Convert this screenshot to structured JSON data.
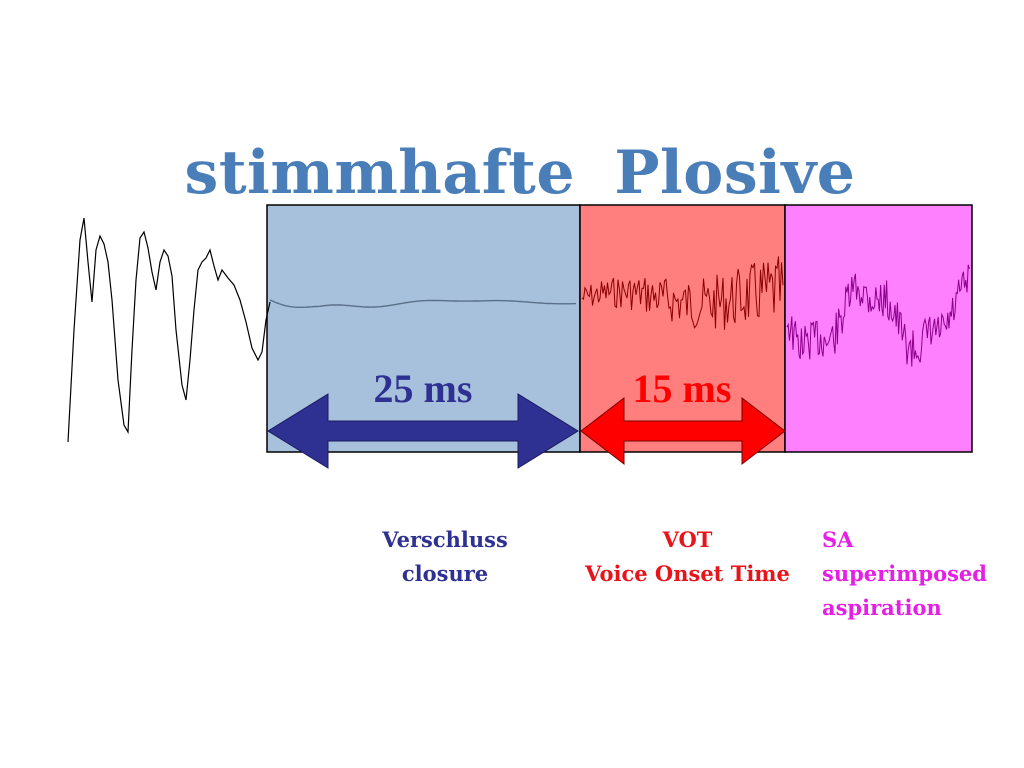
{
  "title": "stimmhafte  Plosive",
  "colors": {
    "title": "#4a7eb9",
    "closure_fill": "#a7c1dc",
    "vot_fill": "#ff7f7f",
    "sa_fill": "#ff80ff",
    "closure_arrow": "#2e3192",
    "vot_arrow": "#ff0000",
    "closure_label": "#2e3192",
    "vot_label": "#e8141b",
    "sa_label": "#e61ee6",
    "waveform_pre": "#000000",
    "waveform_closure": "#5a6f88",
    "waveform_vot": "#8b0000",
    "waveform_sa": "#8b008b"
  },
  "segments": {
    "closure": {
      "duration": "25 ms",
      "label_line1": "Verschluss",
      "label_line2": "closure"
    },
    "vot": {
      "duration": "15 ms",
      "label_line1": "VOT",
      "label_line2": "Voice Onset Time"
    },
    "sa": {
      "label_line1": "SA",
      "label_line2": "superimposed",
      "label_line3": "aspiration"
    }
  }
}
